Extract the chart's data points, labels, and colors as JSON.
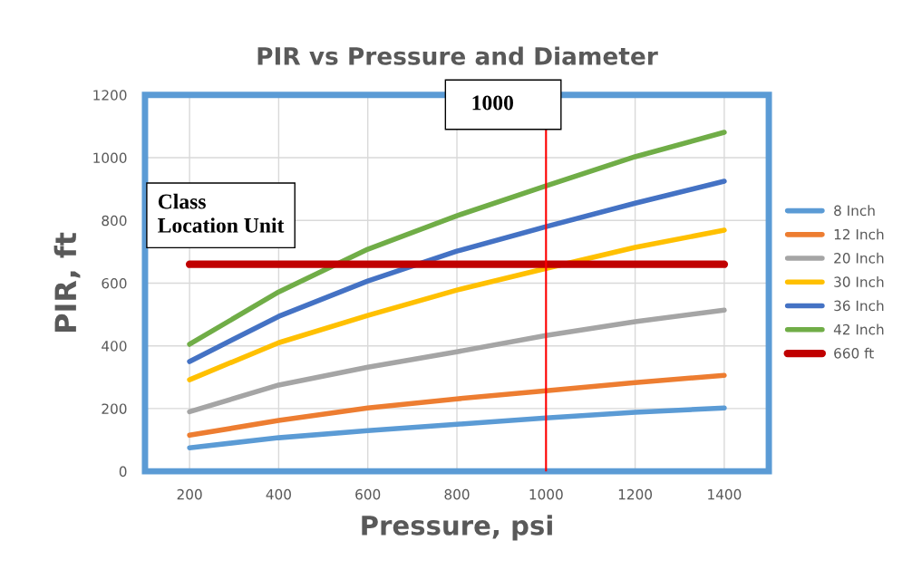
{
  "chart_data": {
    "type": "line",
    "title": "PIR vs Pressure and Diameter",
    "xlabel": "Pressure, psi",
    "ylabel": "PIR, ft",
    "x": [
      200,
      400,
      600,
      800,
      1000,
      1200,
      1400
    ],
    "series": [
      {
        "name": "8 Inch",
        "color": "#5b9bd5",
        "values": [
          75,
          107,
          130,
          150,
          170,
          188,
          202
        ]
      },
      {
        "name": "12 Inch",
        "color": "#ed7d31",
        "values": [
          115,
          162,
          202,
          231,
          257,
          283,
          306
        ]
      },
      {
        "name": "20 Inch",
        "color": "#a5a5a5",
        "values": [
          190,
          275,
          332,
          381,
          433,
          477,
          514
        ]
      },
      {
        "name": "30 Inch",
        "color": "#ffc000",
        "values": [
          292,
          410,
          497,
          578,
          647,
          714,
          769
        ]
      },
      {
        "name": "36 Inch",
        "color": "#4472c4",
        "values": [
          350,
          494,
          607,
          702,
          780,
          855,
          925
        ]
      },
      {
        "name": "42 Inch",
        "color": "#70ad47",
        "values": [
          405,
          572,
          708,
          815,
          910,
          1003,
          1081
        ]
      },
      {
        "name": "660 ft",
        "color": "#c00000",
        "values": [
          660,
          660,
          660,
          660,
          660,
          660,
          660
        ]
      }
    ],
    "ref_lines": [
      {
        "axis": "x",
        "value": 1000,
        "label": "1000",
        "color": "#ff0000"
      }
    ],
    "annotations": [
      "Class\nLocation Unit"
    ],
    "xlim": [
      100,
      1500
    ],
    "xticks": [
      200,
      400,
      600,
      800,
      1000,
      1200,
      1400
    ],
    "ylim": [
      0,
      1200
    ],
    "yticks": [
      0,
      200,
      400,
      600,
      800,
      1000,
      1200
    ],
    "grid": true,
    "legend": "right"
  }
}
